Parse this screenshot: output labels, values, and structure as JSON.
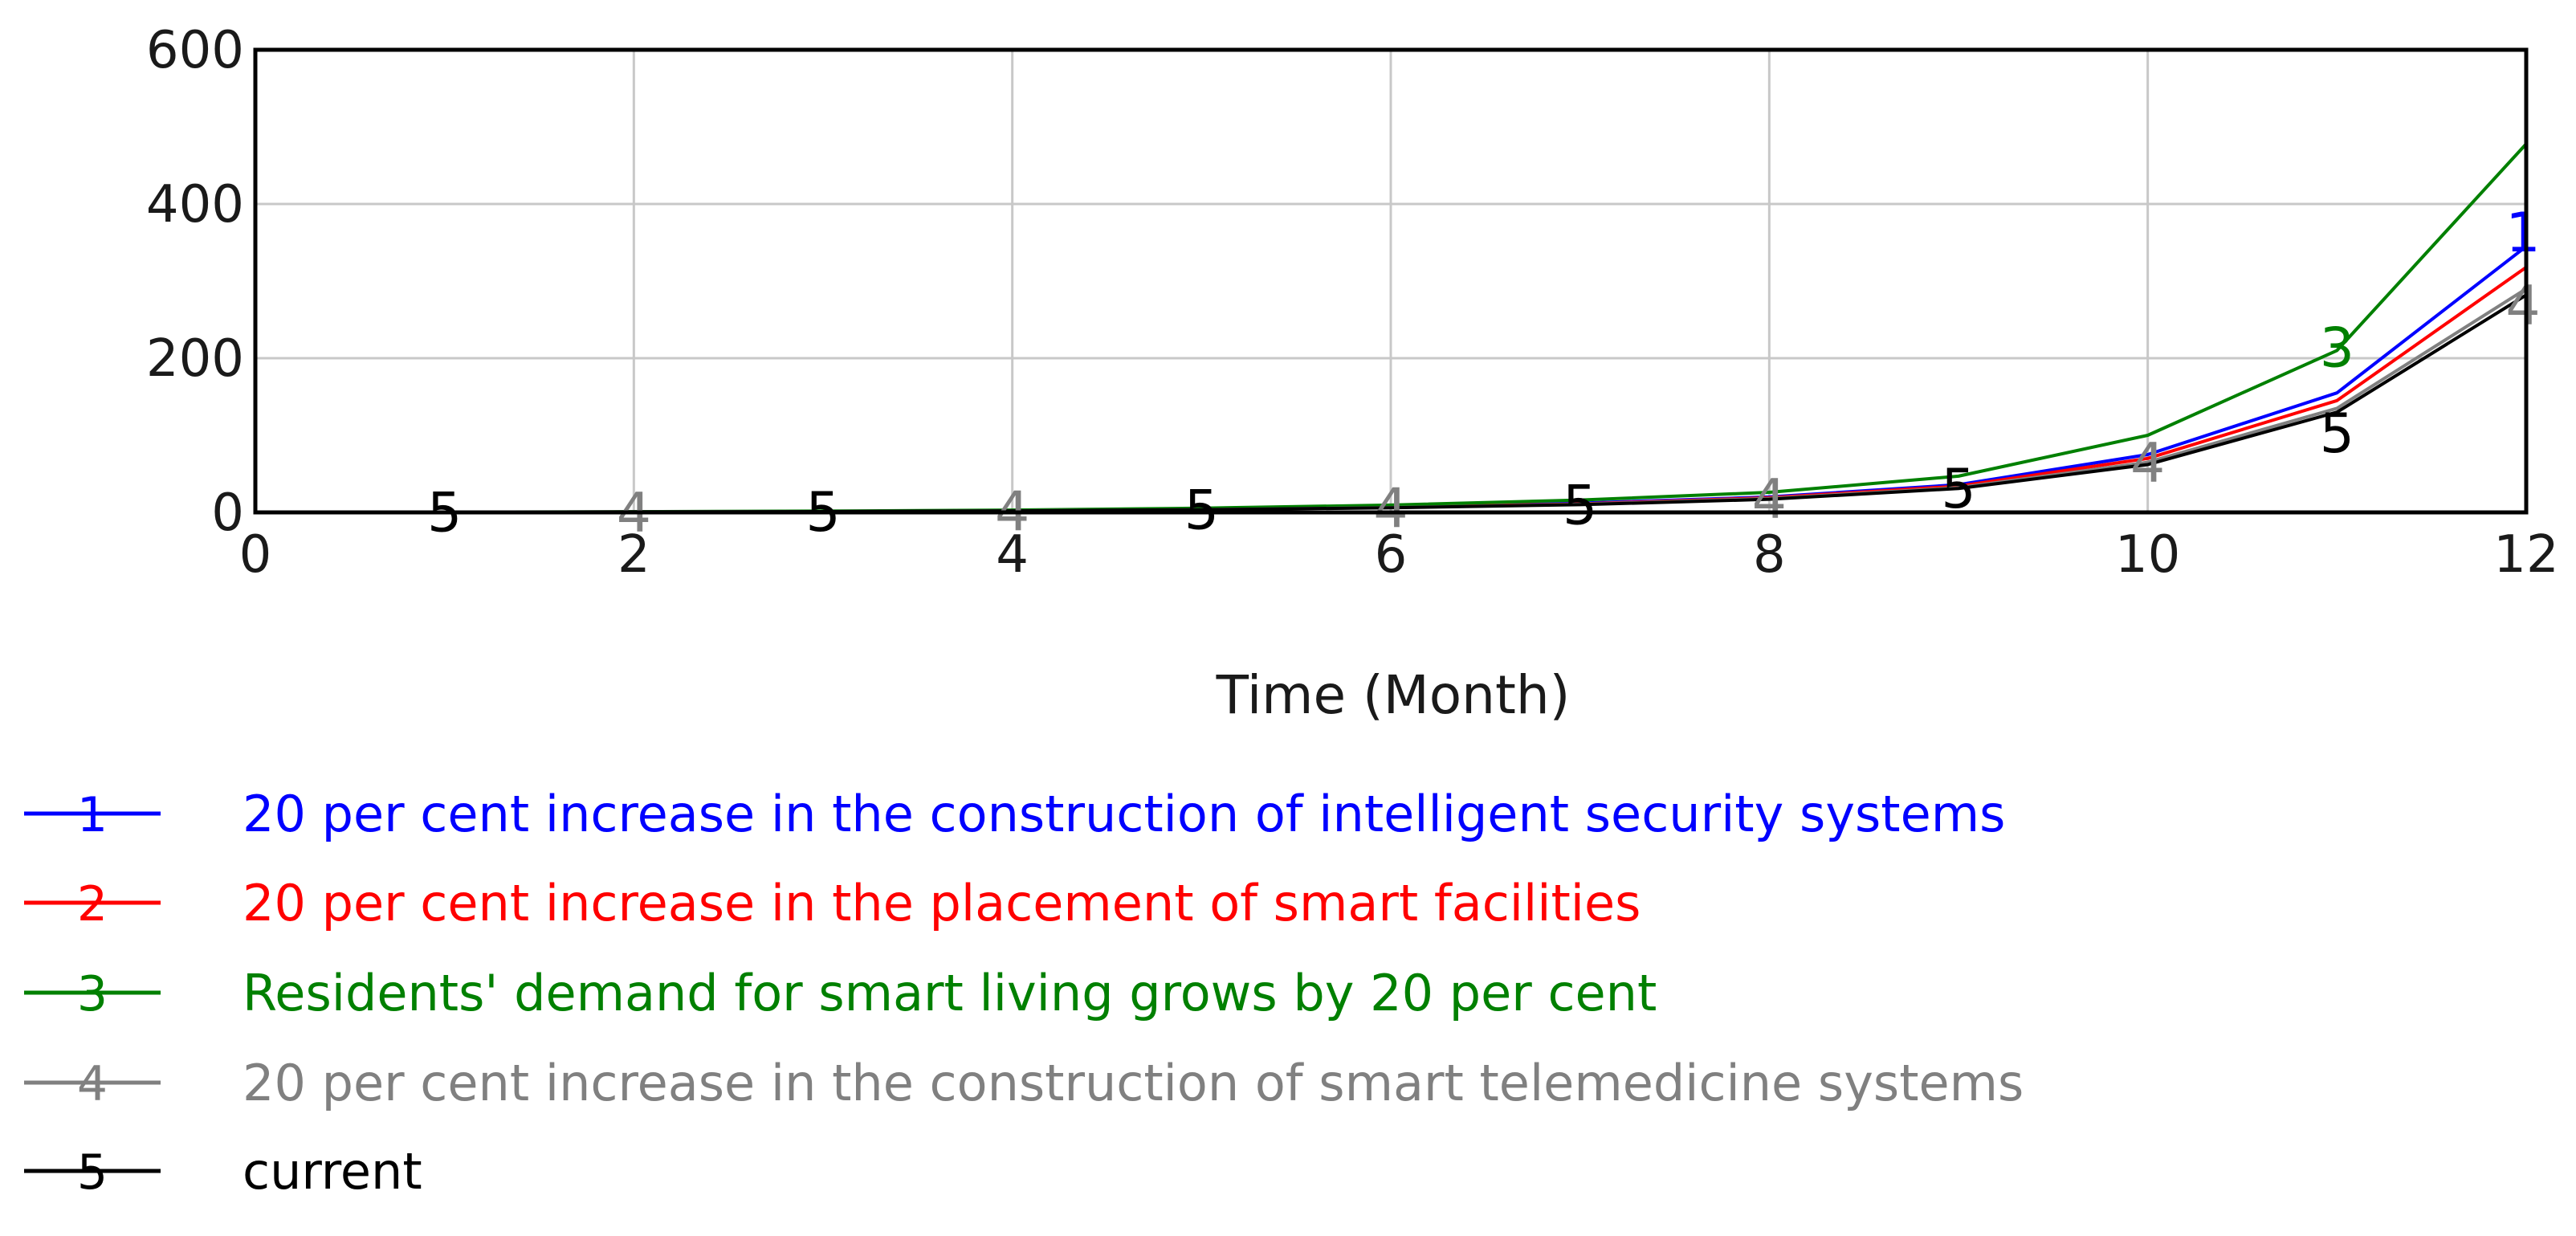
{
  "chart_data": {
    "type": "line",
    "title": "",
    "xlabel": "Time (Month)",
    "ylabel": "",
    "xlim": [
      0,
      12
    ],
    "ylim": [
      0,
      600
    ],
    "x_ticks": [
      "0",
      "2",
      "4",
      "6",
      "8",
      "10",
      "12"
    ],
    "y_ticks": [
      "0",
      "200",
      "400",
      "600"
    ],
    "grid": true,
    "legend_position": "bottom",
    "x": [
      0,
      1,
      2,
      3,
      4,
      5,
      6,
      7,
      8,
      9,
      10,
      11,
      12
    ],
    "series": [
      {
        "name": "20 per cent increase in the construction of intelligent security systems",
        "marker": "1",
        "color": "#0000ff",
        "values": [
          0,
          0.3,
          0.7,
          1.3,
          2.2,
          4,
          7,
          12,
          20,
          36,
          75,
          155,
          345
        ]
      },
      {
        "name": "20 per cent increase in the placement of smart facilities",
        "marker": "2",
        "color": "#ff0000",
        "values": [
          0,
          0.3,
          0.7,
          1.2,
          2.1,
          3.8,
          6.6,
          11,
          19,
          34,
          70,
          145,
          318
        ]
      },
      {
        "name": "Residents' demand for smart living grows by 20 per cent",
        "marker": "3",
        "color": "#008000",
        "values": [
          0,
          0.4,
          0.9,
          1.7,
          3,
          5.5,
          9.5,
          16,
          26,
          47,
          100,
          210,
          478
        ]
      },
      {
        "name": "20 per cent increase in the construction of smart telemedicine systems",
        "marker": "4",
        "color": "#808080",
        "values": [
          0,
          0.3,
          0.6,
          1.1,
          2,
          3.6,
          6.2,
          10.5,
          18,
          32,
          65,
          135,
          290
        ]
      },
      {
        "name": "current",
        "marker": "5",
        "color": "#000000",
        "values": [
          0,
          0.3,
          0.6,
          1.1,
          1.9,
          3.5,
          6,
          10,
          17,
          31,
          62,
          130,
          282
        ]
      }
    ],
    "marker_positions": [
      {
        "label": "5",
        "x": 1,
        "series": 4
      },
      {
        "label": "4",
        "x": 2,
        "series": 3
      },
      {
        "label": "5",
        "x": 3,
        "series": 4
      },
      {
        "label": "4",
        "x": 4,
        "series": 3
      },
      {
        "label": "5",
        "x": 5,
        "series": 4
      },
      {
        "label": "4",
        "x": 6,
        "series": 3
      },
      {
        "label": "5",
        "x": 7,
        "series": 4
      },
      {
        "label": "4",
        "x": 8,
        "series": 3
      },
      {
        "label": "5",
        "x": 9,
        "series": 4
      },
      {
        "label": "4",
        "x": 10,
        "series": 3
      },
      {
        "label": "3",
        "x": 11,
        "series": 2
      },
      {
        "label": "5",
        "x": 11,
        "series": 4
      },
      {
        "label": "1",
        "x": 12,
        "series": 0
      },
      {
        "label": "4",
        "x": 12,
        "series": 3
      }
    ]
  }
}
